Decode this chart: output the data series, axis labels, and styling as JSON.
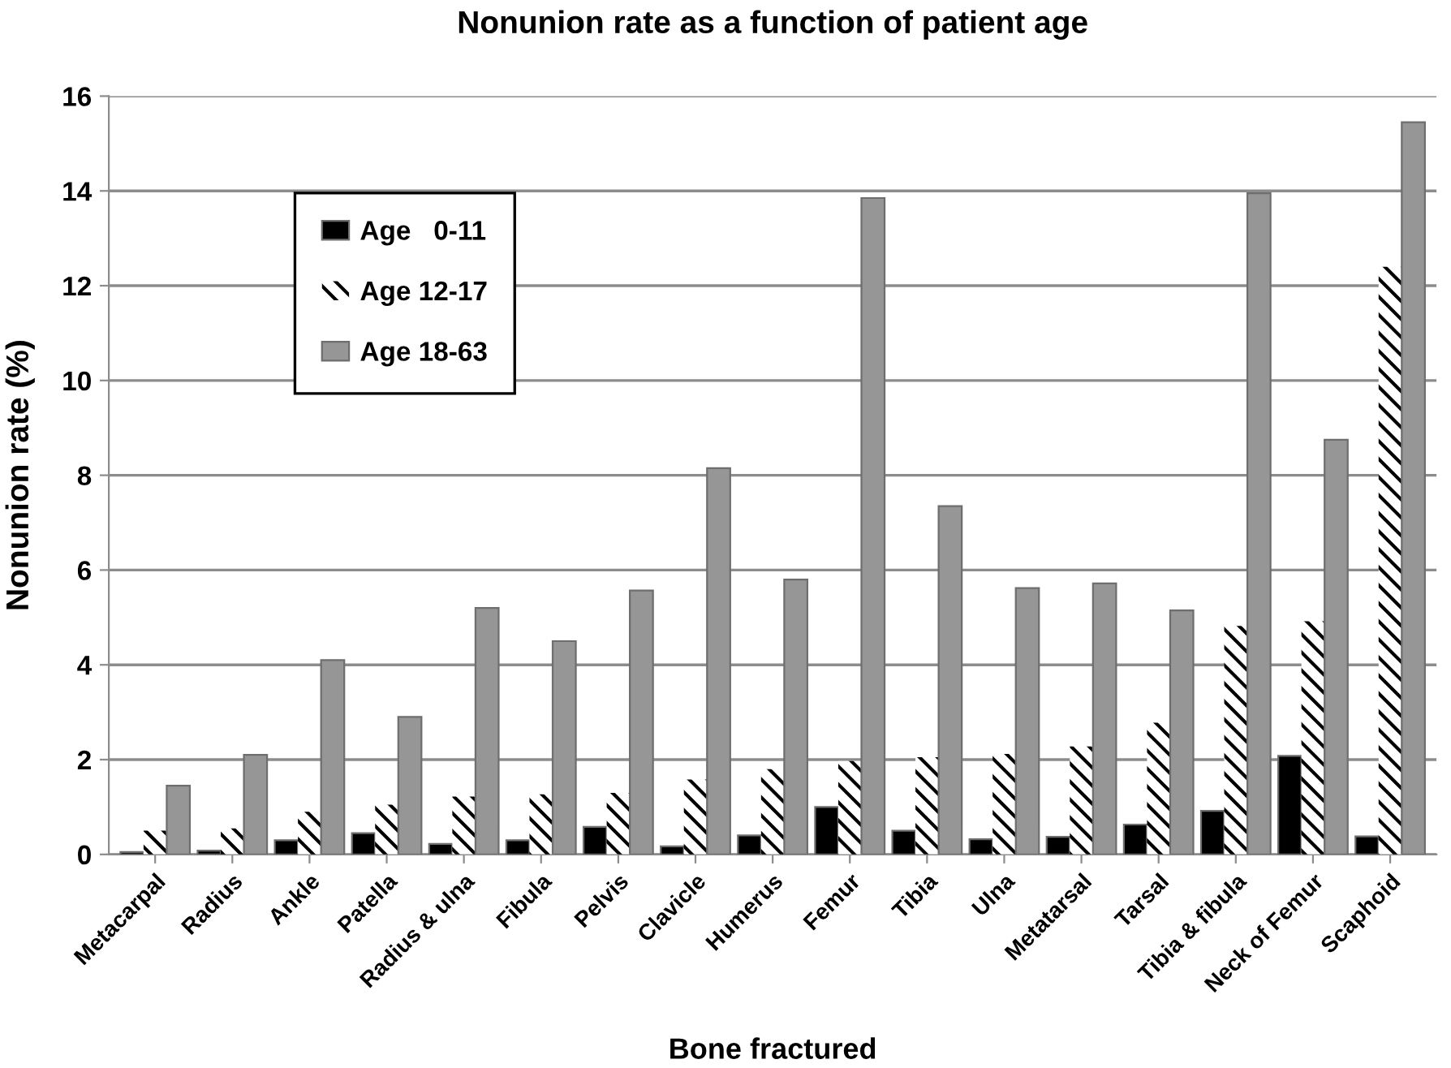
{
  "chart_data": {
    "type": "bar",
    "title": "Nonunion rate as a function of patient age",
    "xlabel": "Bone fractured",
    "ylabel": "Nonunion rate (%)",
    "categories": [
      "Metacarpal",
      "Radius",
      "Ankle",
      "Patella",
      "Radius & ulna",
      "Fibula",
      "Pelvis",
      "Clavicle",
      "Humerus",
      "Femur",
      "Tibia",
      "Ulna",
      "Metatarsal",
      "Tarsal",
      "Tibia & fibula",
      "Neck of Femur",
      "Scaphoid"
    ],
    "series": [
      {
        "name": "Age   0-11",
        "color": "#000000",
        "values": [
          0.05,
          0.08,
          0.3,
          0.45,
          0.22,
          0.3,
          0.58,
          0.17,
          0.4,
          1.0,
          0.5,
          0.32,
          0.37,
          0.63,
          0.92,
          2.08,
          0.38
        ]
      },
      {
        "name": "Age 12-17",
        "color": "#ffffff",
        "values": [
          0.5,
          0.55,
          0.9,
          1.05,
          1.22,
          1.27,
          1.3,
          1.58,
          1.8,
          1.97,
          2.05,
          2.12,
          2.28,
          2.78,
          4.82,
          4.92,
          12.4
        ]
      },
      {
        "name": "Age 18-63",
        "color": "#969696",
        "values": [
          1.45,
          2.1,
          4.1,
          2.9,
          5.2,
          4.5,
          5.57,
          8.15,
          5.8,
          13.85,
          7.35,
          5.62,
          5.72,
          5.15,
          13.95,
          8.75,
          15.45
        ]
      }
    ],
    "ylim": [
      0,
      16
    ],
    "yticks": [
      0,
      2,
      4,
      6,
      8,
      10,
      12,
      14,
      16
    ],
    "grid": "y",
    "legend": "top left"
  }
}
